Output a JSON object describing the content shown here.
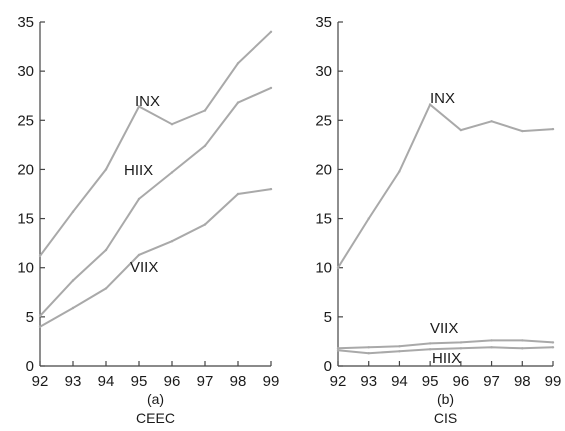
{
  "chart_data": [
    {
      "type": "line",
      "panel_label": "(a)",
      "title": "CEEC",
      "x": [
        "92",
        "93",
        "94",
        "95",
        "96",
        "97",
        "98",
        "99"
      ],
      "yticks": [
        "0",
        "5",
        "10",
        "15",
        "20",
        "25",
        "30",
        "35"
      ],
      "ylim": [
        0,
        35
      ],
      "series": [
        {
          "name": "INX",
          "values": [
            11.2,
            15.7,
            20.0,
            26.4,
            24.6,
            26.0,
            30.8,
            34.0
          ]
        },
        {
          "name": "HIIX",
          "values": [
            5.1,
            8.7,
            11.8,
            17.0,
            19.7,
            22.4,
            26.8,
            28.3
          ]
        },
        {
          "name": "VIIX",
          "values": [
            4.0,
            5.9,
            7.9,
            11.3,
            12.7,
            14.4,
            17.5,
            18.0
          ]
        }
      ],
      "line_color": "#a9a9a9"
    },
    {
      "type": "line",
      "panel_label": "(b)",
      "title": "CIS",
      "x": [
        "92",
        "93",
        "94",
        "95",
        "96",
        "97",
        "98",
        "99"
      ],
      "yticks": [
        "0",
        "5",
        "10",
        "15",
        "20",
        "25",
        "30",
        "35"
      ],
      "ylim": [
        0,
        35
      ],
      "series": [
        {
          "name": "INX",
          "values": [
            10.0,
            15.0,
            19.8,
            26.6,
            24.0,
            24.9,
            23.9,
            24.1
          ]
        },
        {
          "name": "VIIX",
          "values": [
            1.8,
            1.9,
            2.0,
            2.3,
            2.4,
            2.6,
            2.6,
            2.4
          ]
        },
        {
          "name": "HIIX",
          "values": [
            1.6,
            1.3,
            1.5,
            1.7,
            1.8,
            1.9,
            1.8,
            1.9
          ]
        }
      ],
      "line_color": "#a9a9a9"
    }
  ]
}
